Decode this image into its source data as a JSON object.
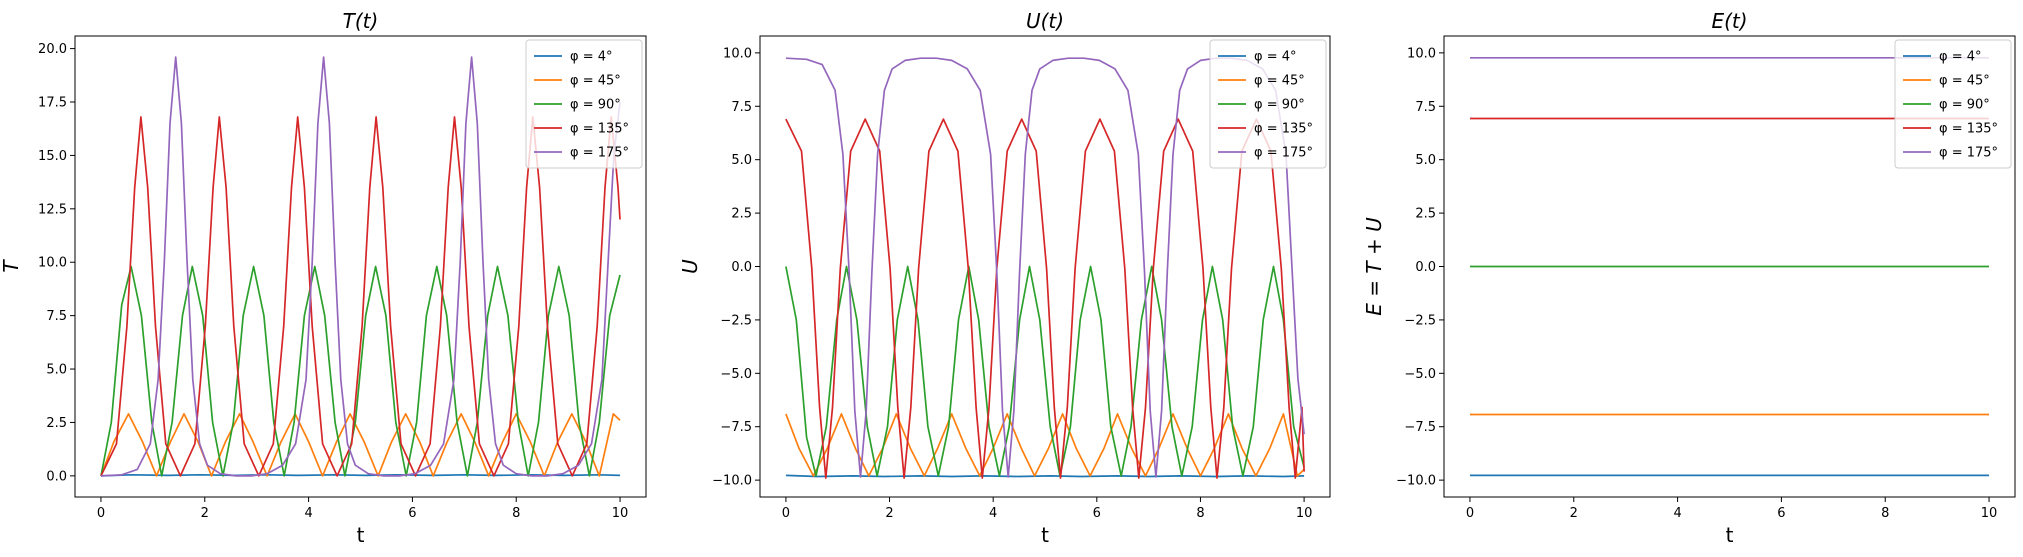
{
  "legend_location": "upper right",
  "series_colors": [
    "#1f77b4",
    "#ff7f0e",
    "#2ca02c",
    "#d62728",
    "#9467bd"
  ],
  "chart_data": [
    {
      "type": "line",
      "title": "T(t)",
      "xlabel": "t",
      "ylabel": "T",
      "xlim": [
        -0.5,
        10.5
      ],
      "ylim": [
        -0.99,
        20.59
      ],
      "xticks": [
        0,
        2,
        4,
        6,
        8,
        10
      ],
      "xtick_labels": [
        "0",
        "2",
        "4",
        "6",
        "8",
        "10"
      ],
      "yticks": [
        0,
        2.5,
        5,
        7.5,
        10,
        12.5,
        15,
        17.5,
        20
      ],
      "ytick_labels": [
        "0.0",
        "2.5",
        "5.0",
        "7.5",
        "10.0",
        "12.5",
        "15.0",
        "17.5",
        "20.0"
      ],
      "series": [
        {
          "name": "φ = 4°",
          "color": "#1f77b4",
          "x": [
            0,
            0.6,
            1.3,
            1.9,
            2.6,
            3.2,
            3.8,
            4.5,
            5.1,
            5.7,
            6.4,
            7.0,
            7.6,
            8.3,
            8.9,
            9.6,
            10
          ],
          "y": [
            0,
            0.05,
            0.02,
            0.05,
            0.02,
            0.05,
            0.02,
            0.05,
            0.02,
            0.05,
            0.02,
            0.05,
            0.02,
            0.05,
            0.02,
            0.05,
            0.02
          ]
        },
        {
          "name": "φ = 45°",
          "color": "#ff7f0e",
          "x": [
            0,
            0.25,
            0.53,
            0.8,
            1.07,
            1.34,
            1.6,
            1.87,
            2.13,
            2.4,
            2.67,
            2.93,
            3.2,
            3.47,
            3.74,
            4.0,
            4.27,
            4.54,
            4.8,
            5.07,
            5.34,
            5.6,
            5.87,
            6.14,
            6.4,
            6.67,
            6.94,
            7.2,
            7.47,
            7.74,
            8.0,
            8.27,
            8.54,
            8.8,
            9.07,
            9.34,
            9.6,
            9.87,
            10.0
          ],
          "y": [
            0,
            1.6,
            2.9,
            1.6,
            0,
            1.6,
            2.9,
            1.6,
            0,
            1.6,
            2.9,
            1.6,
            0,
            1.6,
            2.9,
            1.6,
            0,
            1.6,
            2.9,
            1.6,
            0,
            1.6,
            2.9,
            1.6,
            0,
            1.6,
            2.9,
            1.6,
            0,
            1.6,
            2.9,
            1.6,
            0,
            1.6,
            2.9,
            1.6,
            0,
            2.9,
            2.6
          ]
        },
        {
          "name": "φ = 90°",
          "color": "#2ca02c",
          "x": [
            0,
            0.2,
            0.4,
            0.58,
            0.78,
            0.98,
            1.17,
            1.37,
            1.57,
            1.76,
            1.96,
            2.15,
            2.35,
            2.55,
            2.74,
            2.94,
            3.14,
            3.33,
            3.53,
            3.72,
            3.92,
            4.12,
            4.31,
            4.51,
            4.7,
            4.9,
            5.1,
            5.29,
            5.49,
            5.68,
            5.88,
            6.08,
            6.27,
            6.47,
            6.66,
            6.86,
            7.06,
            7.25,
            7.45,
            7.64,
            7.84,
            8.04,
            8.23,
            8.43,
            8.62,
            8.82,
            9.02,
            9.21,
            9.41,
            9.6,
            9.8,
            10.0
          ],
          "y": [
            0,
            2.5,
            8.0,
            9.8,
            7.5,
            2.5,
            0,
            2.5,
            7.5,
            9.8,
            7.5,
            2.5,
            0,
            2.5,
            7.5,
            9.8,
            7.5,
            2.5,
            0,
            2.5,
            7.5,
            9.8,
            7.5,
            2.5,
            0,
            2.5,
            7.5,
            9.8,
            7.5,
            2.5,
            0,
            2.5,
            7.5,
            9.8,
            7.5,
            2.5,
            0,
            2.5,
            7.5,
            9.8,
            7.5,
            2.5,
            0,
            2.5,
            7.5,
            9.8,
            7.5,
            2.5,
            0,
            2.5,
            7.5,
            9.4
          ]
        },
        {
          "name": "φ = 135°",
          "color": "#d62728",
          "x": [
            0,
            0.3,
            0.5,
            0.65,
            0.77,
            0.9,
            1.05,
            1.25,
            1.53,
            1.81,
            2.01,
            2.16,
            2.28,
            2.41,
            2.56,
            2.76,
            3.04,
            3.32,
            3.52,
            3.67,
            3.79,
            3.92,
            4.07,
            4.27,
            4.55,
            4.83,
            5.03,
            5.18,
            5.3,
            5.43,
            5.58,
            5.78,
            6.06,
            6.34,
            6.54,
            6.69,
            6.81,
            6.94,
            7.09,
            7.29,
            7.57,
            7.85,
            8.05,
            8.2,
            8.32,
            8.45,
            8.6,
            8.8,
            9.08,
            9.36,
            9.56,
            9.71,
            9.83,
            9.96,
            10.0
          ],
          "y": [
            0,
            1.5,
            7.0,
            13.5,
            16.8,
            13.5,
            7.0,
            1.5,
            0,
            1.5,
            7.0,
            13.5,
            16.8,
            13.5,
            7.0,
            1.5,
            0,
            1.5,
            7.0,
            13.5,
            16.8,
            13.5,
            7.0,
            1.5,
            0,
            1.5,
            7.0,
            13.5,
            16.8,
            13.5,
            7.0,
            1.5,
            0,
            1.5,
            7.0,
            13.5,
            16.8,
            13.5,
            7.0,
            1.5,
            0,
            1.5,
            7.0,
            13.5,
            16.8,
            13.5,
            7.0,
            1.5,
            0,
            1.5,
            7.0,
            13.5,
            16.8,
            13.5,
            12.0
          ]
        },
        {
          "name": "φ = 175°",
          "color": "#9467bd",
          "x": [
            0,
            0.4,
            0.7,
            0.95,
            1.1,
            1.22,
            1.33,
            1.44,
            1.55,
            1.66,
            1.77,
            1.9,
            2.05,
            2.3,
            2.6,
            2.9,
            3.2,
            3.5,
            3.75,
            3.95,
            4.07,
            4.18,
            4.29,
            4.4,
            4.51,
            4.62,
            4.75,
            4.9,
            5.15,
            5.45,
            5.75,
            6.05,
            6.35,
            6.6,
            6.8,
            6.92,
            7.03,
            7.14,
            7.25,
            7.36,
            7.47,
            7.6,
            7.75,
            8.0,
            8.3,
            8.6,
            8.9,
            9.2,
            9.45,
            9.65,
            9.77,
            9.88,
            10.0
          ],
          "y": [
            0,
            0.05,
            0.3,
            1.5,
            4.5,
            10.0,
            16.5,
            19.6,
            16.5,
            10.0,
            4.5,
            1.5,
            0.5,
            0.1,
            0,
            0,
            0.1,
            0.5,
            1.5,
            4.5,
            10.0,
            16.5,
            19.6,
            16.5,
            10.0,
            4.5,
            1.5,
            0.5,
            0.1,
            0,
            0,
            0.1,
            0.5,
            1.5,
            4.5,
            10.0,
            16.5,
            19.6,
            16.5,
            10.0,
            4.5,
            1.5,
            0.5,
            0.1,
            0,
            0,
            0.1,
            0.5,
            1.5,
            4.5,
            10.0,
            15.0,
            17.5
          ]
        }
      ]
    },
    {
      "type": "line",
      "title": "U(t)",
      "xlabel": "t",
      "ylabel": "U",
      "xlim": [
        -0.5,
        10.5
      ],
      "ylim": [
        -10.79,
        10.79
      ],
      "xticks": [
        0,
        2,
        4,
        6,
        8,
        10
      ],
      "xtick_labels": [
        "0",
        "2",
        "4",
        "6",
        "8",
        "10"
      ],
      "yticks": [
        -10,
        -7.5,
        -5,
        -2.5,
        0,
        2.5,
        5,
        7.5,
        10
      ],
      "ytick_labels": [
        "−10.0",
        "−7.5",
        "−5.0",
        "−2.5",
        "0.0",
        "2.5",
        "5.0",
        "7.5",
        "10.0"
      ],
      "series": [
        {
          "name": "φ = 4°",
          "color": "#1f77b4",
          "x": [
            0,
            0.6,
            1.3,
            1.9,
            2.6,
            3.2,
            3.8,
            4.5,
            5.1,
            5.7,
            6.4,
            7.0,
            7.6,
            8.3,
            8.9,
            9.6,
            10
          ],
          "y": [
            -9.78,
            -9.83,
            -9.8,
            -9.83,
            -9.8,
            -9.83,
            -9.8,
            -9.83,
            -9.8,
            -9.83,
            -9.8,
            -9.83,
            -9.8,
            -9.83,
            -9.8,
            -9.83,
            -9.8
          ]
        },
        {
          "name": "φ = 45°",
          "color": "#ff7f0e",
          "x": [
            0,
            0.25,
            0.53,
            0.8,
            1.07,
            1.34,
            1.6,
            1.87,
            2.13,
            2.4,
            2.67,
            2.93,
            3.2,
            3.47,
            3.74,
            4.0,
            4.27,
            4.54,
            4.8,
            5.07,
            5.34,
            5.6,
            5.87,
            6.14,
            6.4,
            6.67,
            6.94,
            7.2,
            7.47,
            7.74,
            8.0,
            8.27,
            8.54,
            8.8,
            9.07,
            9.34,
            9.6,
            9.87,
            10.0
          ],
          "y": [
            -6.9,
            -8.5,
            -9.8,
            -8.5,
            -6.9,
            -8.5,
            -9.8,
            -8.5,
            -6.9,
            -8.5,
            -9.8,
            -8.5,
            -6.9,
            -8.5,
            -9.8,
            -8.5,
            -6.9,
            -8.5,
            -9.8,
            -8.5,
            -6.9,
            -8.5,
            -9.8,
            -8.5,
            -6.9,
            -8.5,
            -9.8,
            -8.5,
            -6.9,
            -8.5,
            -9.8,
            -8.5,
            -6.9,
            -8.5,
            -9.8,
            -8.5,
            -6.9,
            -9.8,
            -9.5
          ]
        },
        {
          "name": "φ = 90°",
          "color": "#2ca02c",
          "x": [
            0,
            0.2,
            0.4,
            0.58,
            0.78,
            0.98,
            1.17,
            1.37,
            1.57,
            1.76,
            1.96,
            2.15,
            2.35,
            2.55,
            2.74,
            2.94,
            3.14,
            3.33,
            3.53,
            3.72,
            3.92,
            4.12,
            4.31,
            4.51,
            4.7,
            4.9,
            5.1,
            5.29,
            5.49,
            5.68,
            5.88,
            6.08,
            6.27,
            6.47,
            6.66,
            6.86,
            7.06,
            7.25,
            7.45,
            7.64,
            7.84,
            8.04,
            8.23,
            8.43,
            8.62,
            8.82,
            9.02,
            9.21,
            9.41,
            9.6,
            9.8,
            10.0
          ],
          "y": [
            0,
            -2.5,
            -8.0,
            -9.8,
            -7.5,
            -2.5,
            0,
            -2.5,
            -7.5,
            -9.8,
            -7.5,
            -2.5,
            0,
            -2.5,
            -7.5,
            -9.8,
            -7.5,
            -2.5,
            0,
            -2.5,
            -7.5,
            -9.8,
            -7.5,
            -2.5,
            0,
            -2.5,
            -7.5,
            -9.8,
            -7.5,
            -2.5,
            0,
            -2.5,
            -7.5,
            -9.8,
            -7.5,
            -2.5,
            0,
            -2.5,
            -7.5,
            -9.8,
            -7.5,
            -2.5,
            0,
            -2.5,
            -7.5,
            -9.8,
            -7.5,
            -2.5,
            0,
            -2.5,
            -7.5,
            -9.4
          ]
        },
        {
          "name": "φ = 135°",
          "color": "#d62728",
          "x": [
            0,
            0.3,
            0.5,
            0.65,
            0.77,
            0.9,
            1.05,
            1.25,
            1.53,
            1.81,
            2.01,
            2.16,
            2.28,
            2.41,
            2.56,
            2.76,
            3.04,
            3.32,
            3.52,
            3.67,
            3.79,
            3.92,
            4.07,
            4.27,
            4.55,
            4.83,
            5.03,
            5.18,
            5.3,
            5.43,
            5.58,
            5.78,
            6.06,
            6.34,
            6.54,
            6.69,
            6.81,
            6.94,
            7.09,
            7.29,
            7.57,
            7.85,
            8.05,
            8.2,
            8.32,
            8.45,
            8.6,
            8.8,
            9.08,
            9.36,
            9.56,
            9.71,
            9.83,
            9.96,
            10.0
          ],
          "y": [
            6.9,
            5.4,
            -0.1,
            -6.6,
            -9.9,
            -6.6,
            -0.1,
            5.4,
            6.9,
            5.4,
            -0.1,
            -6.6,
            -9.9,
            -6.6,
            -0.1,
            5.4,
            6.9,
            5.4,
            -0.1,
            -6.6,
            -9.9,
            -6.6,
            -0.1,
            5.4,
            6.9,
            5.4,
            -0.1,
            -6.6,
            -9.9,
            -6.6,
            -0.1,
            5.4,
            6.9,
            5.4,
            -0.1,
            -6.6,
            -9.9,
            -6.6,
            -0.1,
            5.4,
            6.9,
            5.4,
            -0.1,
            -6.6,
            -9.9,
            -6.6,
            -0.1,
            5.4,
            6.9,
            5.4,
            -0.1,
            -6.6,
            -9.9,
            -6.6,
            -9.6
          ]
        },
        {
          "name": "φ = 175°",
          "color": "#9467bd",
          "x": [
            0,
            0.4,
            0.7,
            0.95,
            1.1,
            1.22,
            1.33,
            1.44,
            1.55,
            1.66,
            1.77,
            1.9,
            2.05,
            2.3,
            2.6,
            2.9,
            3.2,
            3.5,
            3.75,
            3.95,
            4.07,
            4.18,
            4.29,
            4.4,
            4.51,
            4.62,
            4.75,
            4.9,
            5.15,
            5.45,
            5.75,
            6.05,
            6.35,
            6.6,
            6.8,
            6.92,
            7.03,
            7.14,
            7.25,
            7.36,
            7.47,
            7.6,
            7.75,
            8.0,
            8.3,
            8.6,
            8.9,
            9.2,
            9.45,
            9.65,
            9.77,
            9.88,
            10.0
          ],
          "y": [
            9.75,
            9.7,
            9.45,
            8.25,
            5.25,
            -0.25,
            -6.75,
            -9.85,
            -6.75,
            -0.25,
            5.25,
            8.25,
            9.25,
            9.65,
            9.75,
            9.75,
            9.65,
            9.25,
            8.25,
            5.25,
            -0.25,
            -6.75,
            -9.85,
            -6.75,
            -0.25,
            5.25,
            8.25,
            9.25,
            9.65,
            9.75,
            9.75,
            9.65,
            9.25,
            8.25,
            5.25,
            -0.25,
            -6.75,
            -9.85,
            -6.75,
            -0.25,
            5.25,
            8.25,
            9.25,
            9.65,
            9.75,
            9.75,
            9.65,
            9.25,
            8.25,
            5.25,
            -0.25,
            -5.25,
            -7.85
          ]
        }
      ]
    },
    {
      "type": "line",
      "title": "E(t)",
      "xlabel": "t",
      "ylabel": "E = T + U",
      "xlim": [
        -0.5,
        10.5
      ],
      "ylim": [
        -10.79,
        10.79
      ],
      "xticks": [
        0,
        2,
        4,
        6,
        8,
        10
      ],
      "xtick_labels": [
        "0",
        "2",
        "4",
        "6",
        "8",
        "10"
      ],
      "yticks": [
        -10,
        -7.5,
        -5,
        -2.5,
        0,
        2.5,
        5,
        7.5,
        10
      ],
      "ytick_labels": [
        "−10.0",
        "−7.5",
        "−5.0",
        "−2.5",
        "0.0",
        "2.5",
        "5.0",
        "7.5",
        "10.0"
      ],
      "series": [
        {
          "name": "φ = 4°",
          "color": "#1f77b4",
          "x": [
            0,
            10
          ],
          "y": [
            -9.78,
            -9.78
          ]
        },
        {
          "name": "φ = 45°",
          "color": "#ff7f0e",
          "x": [
            0,
            10
          ],
          "y": [
            -6.93,
            -6.93
          ]
        },
        {
          "name": "φ = 90°",
          "color": "#2ca02c",
          "x": [
            0,
            10
          ],
          "y": [
            0,
            0
          ]
        },
        {
          "name": "φ = 135°",
          "color": "#d62728",
          "x": [
            0,
            10
          ],
          "y": [
            6.93,
            6.93
          ]
        },
        {
          "name": "φ = 175°",
          "color": "#9467bd",
          "x": [
            0,
            10
          ],
          "y": [
            9.77,
            9.77
          ]
        }
      ]
    }
  ]
}
